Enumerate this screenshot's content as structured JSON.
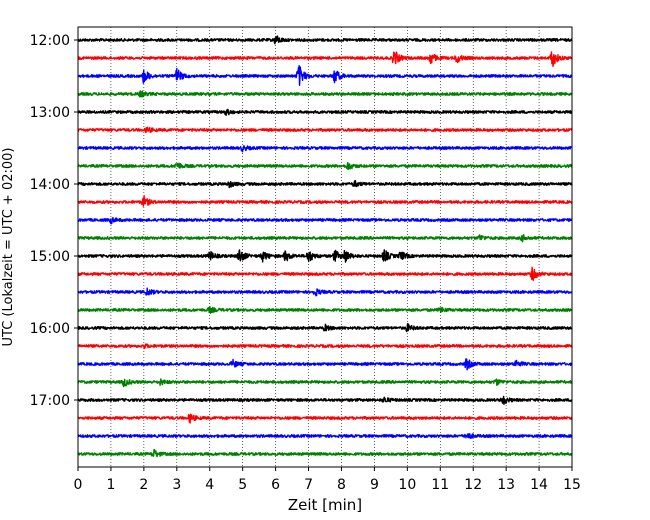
{
  "chart_data": {
    "type": "line",
    "title": "",
    "xlabel": "Zeit  [min]",
    "ylabel": "UTC (Lokalzeit = UTC + 02:00)",
    "xlim": [
      0,
      15
    ],
    "x_ticks": [
      "0",
      "1",
      "2",
      "3",
      "4",
      "5",
      "6",
      "7",
      "8",
      "9",
      "10",
      "11",
      "12",
      "13",
      "14",
      "15"
    ],
    "y_ticks": [
      "12:00",
      "13:00",
      "14:00",
      "15:00",
      "16:00",
      "17:00"
    ],
    "grid": "vertical dotted",
    "trace_interval_min": 15,
    "trace_colors": [
      "#000000",
      "#ff0000",
      "#0000ff",
      "#008000"
    ],
    "traces": [
      {
        "start": "12:00",
        "color": "#000000",
        "events": [
          {
            "t": 6.0,
            "amp": 0.5
          }
        ]
      },
      {
        "start": "12:15",
        "color": "#ff0000",
        "events": [
          {
            "t": 9.6,
            "amp": 0.9
          },
          {
            "t": 10.7,
            "amp": 0.7
          },
          {
            "t": 11.5,
            "amp": 0.5
          },
          {
            "t": 14.4,
            "amp": 1.0
          }
        ]
      },
      {
        "start": "12:30",
        "color": "#0000ff",
        "events": [
          {
            "t": 2.0,
            "amp": 0.8
          },
          {
            "t": 3.0,
            "amp": 0.8
          },
          {
            "t": 6.7,
            "amp": 1.3
          },
          {
            "t": 7.8,
            "amp": 0.8
          }
        ]
      },
      {
        "start": "12:45",
        "color": "#008000",
        "events": [
          {
            "t": 1.9,
            "amp": 0.3
          }
        ]
      },
      {
        "start": "13:00",
        "color": "#000000",
        "events": [
          {
            "t": 4.5,
            "amp": 0.3
          }
        ]
      },
      {
        "start": "13:15",
        "color": "#ff0000",
        "events": [
          {
            "t": 2.1,
            "amp": 0.3
          }
        ]
      },
      {
        "start": "13:30",
        "color": "#0000ff",
        "events": [
          {
            "t": 5.0,
            "amp": 0.3
          }
        ]
      },
      {
        "start": "13:45",
        "color": "#008000",
        "events": [
          {
            "t": 3.0,
            "amp": 0.4
          },
          {
            "t": 8.2,
            "amp": 0.4
          }
        ]
      },
      {
        "start": "14:00",
        "color": "#000000",
        "events": [
          {
            "t": 4.6,
            "amp": 0.3
          },
          {
            "t": 8.4,
            "amp": 0.3
          }
        ]
      },
      {
        "start": "14:15",
        "color": "#ff0000",
        "events": [
          {
            "t": 2.0,
            "amp": 0.6
          }
        ]
      },
      {
        "start": "14:30",
        "color": "#0000ff",
        "events": [
          {
            "t": 1.0,
            "amp": 0.3
          }
        ]
      },
      {
        "start": "14:45",
        "color": "#008000",
        "events": [
          {
            "t": 12.2,
            "amp": 0.3
          },
          {
            "t": 13.5,
            "amp": 0.3
          }
        ]
      },
      {
        "start": "15:00",
        "color": "#000000",
        "events": [
          {
            "t": 4.0,
            "amp": 0.5
          },
          {
            "t": 4.9,
            "amp": 0.8
          },
          {
            "t": 5.6,
            "amp": 0.6
          },
          {
            "t": 6.3,
            "amp": 0.6
          },
          {
            "t": 7.0,
            "amp": 0.7
          },
          {
            "t": 7.8,
            "amp": 0.6
          },
          {
            "t": 8.1,
            "amp": 0.7
          },
          {
            "t": 9.3,
            "amp": 0.7
          },
          {
            "t": 9.8,
            "amp": 0.5
          }
        ]
      },
      {
        "start": "15:15",
        "color": "#ff0000",
        "events": [
          {
            "t": 13.8,
            "amp": 0.7
          }
        ]
      },
      {
        "start": "15:30",
        "color": "#0000ff",
        "events": [
          {
            "t": 2.1,
            "amp": 0.4
          },
          {
            "t": 7.2,
            "amp": 0.4
          }
        ]
      },
      {
        "start": "15:45",
        "color": "#008000",
        "events": [
          {
            "t": 4.0,
            "amp": 0.3
          },
          {
            "t": 11.0,
            "amp": 0.3
          }
        ]
      },
      {
        "start": "16:00",
        "color": "#000000",
        "events": [
          {
            "t": 7.5,
            "amp": 0.3
          },
          {
            "t": 10.0,
            "amp": 0.4
          }
        ]
      },
      {
        "start": "16:15",
        "color": "#ff0000",
        "events": [
          {
            "t": 2.0,
            "amp": 0.2
          }
        ]
      },
      {
        "start": "16:30",
        "color": "#0000ff",
        "events": [
          {
            "t": 4.7,
            "amp": 0.4
          },
          {
            "t": 11.8,
            "amp": 0.6
          },
          {
            "t": 13.3,
            "amp": 0.4
          }
        ]
      },
      {
        "start": "16:45",
        "color": "#008000",
        "events": [
          {
            "t": 1.4,
            "amp": 0.5
          },
          {
            "t": 2.5,
            "amp": 0.3
          },
          {
            "t": 12.7,
            "amp": 0.3
          }
        ]
      },
      {
        "start": "17:00",
        "color": "#000000",
        "events": [
          {
            "t": 9.3,
            "amp": 0.3
          },
          {
            "t": 12.9,
            "amp": 0.5
          }
        ]
      },
      {
        "start": "17:15",
        "color": "#ff0000",
        "events": [
          {
            "t": 3.4,
            "amp": 0.5
          }
        ]
      },
      {
        "start": "17:30",
        "color": "#0000ff",
        "events": [
          {
            "t": 11.8,
            "amp": 0.4
          }
        ]
      },
      {
        "start": "17:45",
        "color": "#008000",
        "events": [
          {
            "t": 2.3,
            "amp": 0.5
          }
        ]
      }
    ]
  }
}
